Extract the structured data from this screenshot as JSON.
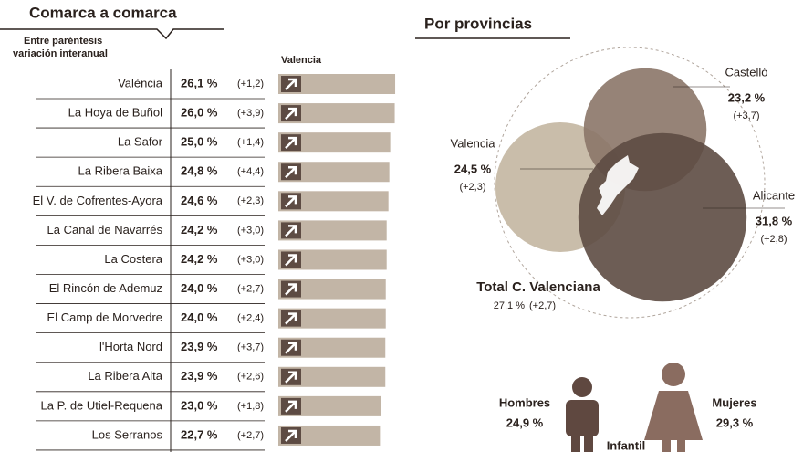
{
  "chart_data": [
    {
      "type": "bar",
      "title": "Comarca a comarca",
      "subtitle": [
        "Entre paréntesis",
        "variación interanual"
      ],
      "legend": "Valencia",
      "categories": [
        "València",
        "La Hoya de Buñol",
        "La Safor",
        "La Ribera Baixa",
        "El V. de Cofrentes-Ayora",
        "La Canal de Navarrés",
        "La Costera",
        "El Rincón de Ademuz",
        "El Camp de Morvedre",
        "l'Horta Nord",
        "La Ribera Alta",
        "La P. de Utiel-Requena",
        "Los Serranos"
      ],
      "values": [
        26.1,
        26.0,
        25.0,
        24.8,
        24.6,
        24.2,
        24.2,
        24.0,
        24.0,
        23.9,
        23.9,
        23.0,
        22.7
      ],
      "value_labels": [
        "26,1 %",
        "26,0 %",
        "25,0 %",
        "24,8 %",
        "24,6 %",
        "24,2 %",
        "24,2 %",
        "24,0 %",
        "24,0 %",
        "23,9 %",
        "23,9 %",
        "23,0 %",
        "22,7 %"
      ],
      "change_labels": [
        "(+1,2)",
        "(+3,9)",
        "(+1,4)",
        "(+4,4)",
        "(+2,3)",
        "(+3,0)",
        "(+3,0)",
        "(+2,7)",
        "(+2,4)",
        "(+3,7)",
        "(+2,6)",
        "(+1,8)",
        "(+2,7)"
      ],
      "color": "#c2b5a6",
      "xlim": [
        0,
        26.5
      ]
    },
    {
      "type": "circles",
      "title": "Por provincias",
      "categories": [
        "Valencia",
        "Castelló",
        "Alicante"
      ],
      "values": [
        24.5,
        23.2,
        31.8
      ],
      "value_labels": [
        "24,5 %",
        "23,2 %",
        "31,8 %"
      ],
      "change_labels": [
        "(+2,3)",
        "(+3,7)",
        "(+2,8)"
      ],
      "colors": [
        "#c3b6a1",
        "#8b7568",
        "#5d4b43"
      ],
      "total_label": "Total C. Valenciana",
      "total_value_label": "27,1 %",
      "total_change_label": "(+2,7)",
      "men_label": "Hombres",
      "men_value_label": "24,9 %",
      "women_label": "Mujeres",
      "women_value_label": "29,3 %",
      "child_label": "Infantil"
    }
  ]
}
